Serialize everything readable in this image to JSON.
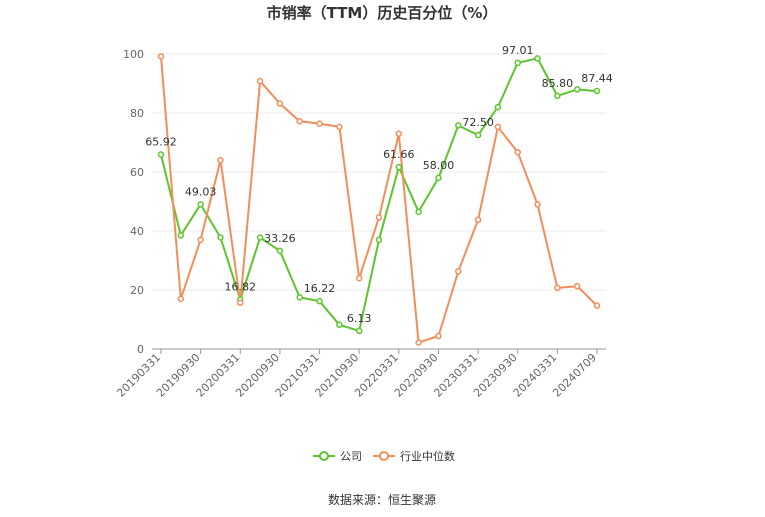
{
  "chart_data": {
    "type": "line",
    "title": "市销率（TTM）历史百分位（%）",
    "xlabel": "",
    "ylabel": "",
    "ylim": [
      0,
      100
    ],
    "yticks": [
      0,
      20,
      40,
      60,
      80,
      100
    ],
    "grid": true,
    "legend_position": "bottom",
    "x_tick_labels": [
      "20190331",
      "20190930",
      "20200331",
      "20200930",
      "20210331",
      "20210930",
      "20220331",
      "20220930",
      "20230331",
      "20230930",
      "20240331",
      "20240709"
    ],
    "x": [
      "20190331",
      "20190630",
      "20190930",
      "20191231",
      "20200331",
      "20200630",
      "20200930",
      "20201231",
      "20210331",
      "20210630",
      "20210930",
      "20211231",
      "20220331",
      "20220630",
      "20220930",
      "20221231",
      "20230331",
      "20230630",
      "20230930",
      "20231231",
      "20240331",
      "20240630",
      "20240709"
    ],
    "series": [
      {
        "name": "公司",
        "color": "#5cc52f",
        "values": [
          65.92,
          38.5,
          49.03,
          37.8,
          16.82,
          37.8,
          33.26,
          17.5,
          16.22,
          8.2,
          6.13,
          37.0,
          61.66,
          46.5,
          58.0,
          75.8,
          72.5,
          82.0,
          97.01,
          98.5,
          85.8,
          88.0,
          87.44
        ]
      },
      {
        "name": "行业中位数",
        "color": "#f28e5c",
        "values": [
          99.2,
          17.0,
          37.0,
          64.0,
          15.7,
          90.8,
          83.2,
          77.2,
          76.4,
          75.3,
          24.0,
          44.6,
          73.0,
          2.2,
          4.4,
          26.3,
          43.8,
          75.3,
          66.7,
          49.0,
          20.7,
          21.3,
          14.7
        ]
      }
    ],
    "data_labels": [
      {
        "series": 0,
        "index": 0,
        "text": "65.92"
      },
      {
        "series": 0,
        "index": 2,
        "text": "49.03"
      },
      {
        "series": 0,
        "index": 4,
        "text": "16.82"
      },
      {
        "series": 0,
        "index": 6,
        "text": "33.26"
      },
      {
        "series": 0,
        "index": 8,
        "text": "16.22"
      },
      {
        "series": 0,
        "index": 10,
        "text": "6.13"
      },
      {
        "series": 0,
        "index": 12,
        "text": "61.66"
      },
      {
        "series": 0,
        "index": 14,
        "text": "58.00"
      },
      {
        "series": 0,
        "index": 16,
        "text": "72.50"
      },
      {
        "series": 0,
        "index": 18,
        "text": "97.01"
      },
      {
        "series": 0,
        "index": 20,
        "text": "85.80"
      },
      {
        "series": 0,
        "index": 22,
        "text": "87.44"
      }
    ]
  },
  "source": "数据来源：恒生聚源"
}
